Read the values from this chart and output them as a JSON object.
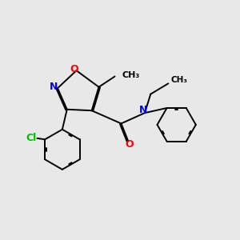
{
  "bg_color": "#e8e8e8",
  "bond_color": "#000000",
  "N_color": "#0000ff",
  "O_color": "#ff0000",
  "Cl_color": "#00bb00",
  "lw": 1.4,
  "dbo": 0.055,
  "xlim": [
    0,
    10
  ],
  "ylim": [
    0,
    10
  ]
}
